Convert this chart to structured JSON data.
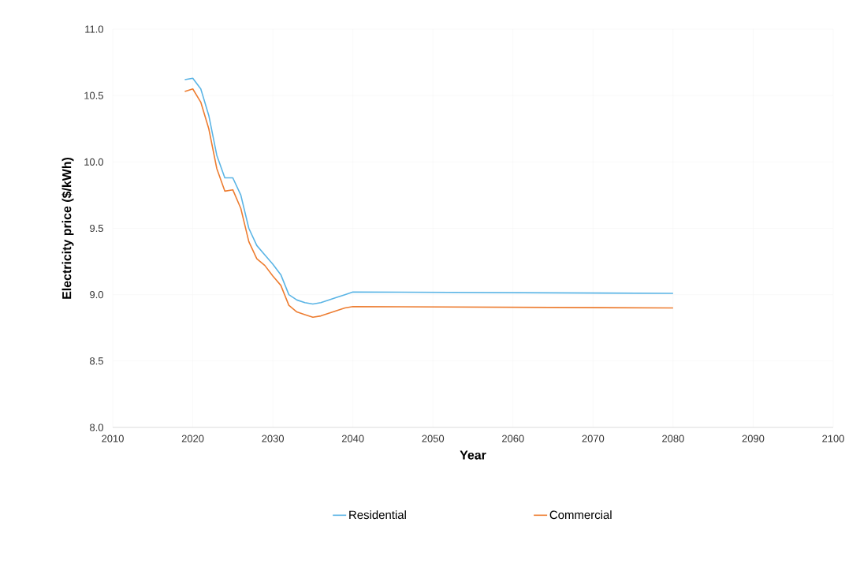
{
  "chart_data": {
    "type": "line",
    "xlabel": "Year",
    "ylabel": "Electricity price ($/kWh)",
    "xlim": [
      2010,
      2100
    ],
    "xticks": [
      2010,
      2020,
      2030,
      2040,
      2050,
      2060,
      2070,
      2080,
      2090,
      2100
    ],
    "ylim": [
      8.0,
      11.0
    ],
    "yticks": [
      {
        "value": 8.0,
        "label": "8.0"
      },
      {
        "value": 8.5,
        "label": "8.5"
      },
      {
        "value": 9.0,
        "label": "9.0"
      },
      {
        "value": 9.5,
        "label": "9.5"
      },
      {
        "value": 10.0,
        "label": "10.0"
      },
      {
        "value": 10.5,
        "label": "10.5"
      },
      {
        "value": 11.0,
        "label": "11.0"
      }
    ],
    "grid": true,
    "legend": "bottom",
    "marker": "none",
    "line_style": "solid",
    "x": [
      2019,
      2020,
      2021,
      2022,
      2023,
      2024,
      2025,
      2026,
      2027,
      2028,
      2029,
      2030,
      2031,
      2032,
      2033,
      2034,
      2035,
      2036,
      2037,
      2038,
      2039,
      2040,
      2080
    ],
    "series": [
      {
        "name": "Residential",
        "color": "#5ab4e5",
        "values": [
          10.62,
          10.63,
          10.55,
          10.35,
          10.05,
          9.88,
          9.88,
          9.75,
          9.5,
          9.37,
          9.3,
          9.23,
          9.15,
          9.0,
          8.96,
          8.94,
          8.93,
          8.94,
          8.96,
          8.98,
          9.0,
          9.02,
          9.01
        ]
      },
      {
        "name": "Commercial",
        "color": "#ed7d31",
        "values": [
          10.53,
          10.55,
          10.45,
          10.25,
          9.95,
          9.78,
          9.79,
          9.65,
          9.4,
          9.27,
          9.22,
          9.14,
          9.07,
          8.92,
          8.87,
          8.85,
          8.83,
          8.84,
          8.86,
          8.88,
          8.9,
          8.91,
          8.9
        ]
      }
    ]
  }
}
